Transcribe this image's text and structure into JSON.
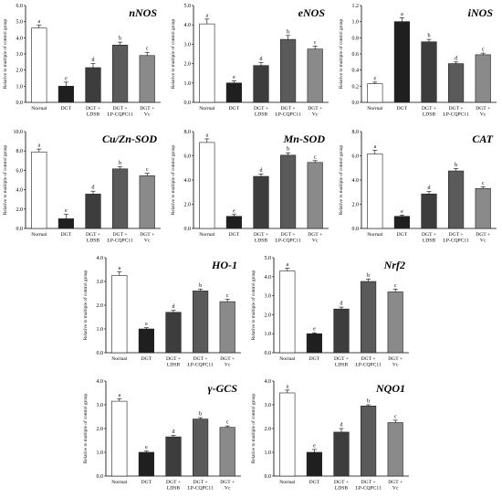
{
  "y_axis_label": "Relative to multiple of control group",
  "categories": [
    [
      "Normal"
    ],
    [
      "DGT"
    ],
    [
      "DGT +",
      "LDSB"
    ],
    [
      "DGT +",
      "LP-CQPC11"
    ],
    [
      "DGT +",
      "Vc"
    ]
  ],
  "bar_colors": [
    "#ffffff",
    "#1f1f1f",
    "#3d3d3d",
    "#5a5a5a",
    "#8a8a8a"
  ],
  "chart_data": [
    {
      "type": "bar",
      "title": "nNOS",
      "ylim": [
        0,
        6
      ],
      "yticks": [
        "0.0",
        "1.0",
        "2.0",
        "3.0",
        "4.0",
        "5.0",
        "6.0"
      ],
      "values": [
        4.6,
        1.0,
        2.15,
        3.55,
        2.9
      ],
      "errors": [
        0.18,
        0.25,
        0.25,
        0.18,
        0.2
      ],
      "letters": [
        "a",
        "e",
        "d",
        "b",
        "c"
      ]
    },
    {
      "type": "bar",
      "title": "eNOS",
      "ylim": [
        0,
        5
      ],
      "yticks": [
        "0.0",
        "1.0",
        "2.0",
        "3.0",
        "4.0",
        "5.0"
      ],
      "values": [
        4.05,
        1.0,
        1.9,
        3.25,
        2.75
      ],
      "errors": [
        0.25,
        0.1,
        0.15,
        0.2,
        0.15
      ],
      "letters": [
        "a",
        "e",
        "d",
        "b",
        "c"
      ]
    },
    {
      "type": "bar",
      "title": "iNOS",
      "ylim": [
        0,
        1.2
      ],
      "yticks": [
        "0.0",
        "0.2",
        "0.4",
        "0.6",
        "0.8",
        "1.0",
        "1.2"
      ],
      "values": [
        0.23,
        1.0,
        0.75,
        0.48,
        0.59
      ],
      "errors": [
        0.02,
        0.05,
        0.03,
        0.02,
        0.02
      ],
      "letters": [
        "e",
        "a",
        "b",
        "d",
        "c"
      ]
    },
    {
      "type": "bar",
      "title": "Cu/Zn-SOD",
      "ylim": [
        0,
        10
      ],
      "yticks": [
        "0.0",
        "2.0",
        "4.0",
        "6.0",
        "8.0",
        "10.0"
      ],
      "values": [
        7.9,
        1.0,
        3.55,
        6.15,
        5.45
      ],
      "errors": [
        0.3,
        0.45,
        0.3,
        0.2,
        0.25
      ],
      "letters": [
        "a",
        "e",
        "d",
        "b",
        "c"
      ]
    },
    {
      "type": "bar",
      "title": "Mn-SOD",
      "ylim": [
        0,
        8
      ],
      "yticks": [
        "0.0",
        "2.0",
        "4.0",
        "6.0",
        "8.0"
      ],
      "values": [
        7.1,
        1.0,
        4.3,
        6.05,
        5.45
      ],
      "errors": [
        0.3,
        0.15,
        0.2,
        0.2,
        0.15
      ],
      "letters": [
        "a",
        "e",
        "d",
        "b",
        "c"
      ]
    },
    {
      "type": "bar",
      "title": "CAT",
      "ylim": [
        0,
        8
      ],
      "yticks": [
        "0.0",
        "2.0",
        "4.0",
        "6.0",
        "8.0"
      ],
      "values": [
        6.15,
        1.0,
        2.85,
        4.75,
        3.3
      ],
      "errors": [
        0.3,
        0.1,
        0.2,
        0.2,
        0.15
      ],
      "letters": [
        "a",
        "e",
        "d",
        "b",
        "c"
      ]
    },
    {
      "type": "bar",
      "title": "HO-1",
      "ylim": [
        0,
        4
      ],
      "yticks": [
        "0.0",
        "1.0",
        "2.0",
        "3.0",
        "4.0"
      ],
      "values": [
        3.25,
        1.0,
        1.7,
        2.6,
        2.15
      ],
      "errors": [
        0.15,
        0.05,
        0.08,
        0.08,
        0.1
      ],
      "letters": [
        "a",
        "e",
        "d",
        "b",
        "c"
      ]
    },
    {
      "type": "bar",
      "title": "Nrf2",
      "ylim": [
        0,
        5
      ],
      "yticks": [
        "0.0",
        "1.0",
        "2.0",
        "3.0",
        "4.0",
        "5.0"
      ],
      "values": [
        4.3,
        1.0,
        2.3,
        3.75,
        3.2
      ],
      "errors": [
        0.15,
        0.05,
        0.1,
        0.12,
        0.15
      ],
      "letters": [
        "a",
        "e",
        "d",
        "b",
        "c"
      ]
    },
    {
      "type": "bar",
      "title": "γ-GCS",
      "ylim": [
        0,
        4
      ],
      "yticks": [
        "0.0",
        "1.0",
        "2.0",
        "3.0",
        "4.0"
      ],
      "values": [
        3.15,
        1.0,
        1.65,
        2.4,
        2.05
      ],
      "errors": [
        0.1,
        0.05,
        0.06,
        0.06,
        0.06
      ],
      "letters": [
        "a",
        "e",
        "d",
        "b",
        "c"
      ]
    },
    {
      "type": "bar",
      "title": "NQO1",
      "ylim": [
        0,
        4
      ],
      "yticks": [
        "0.0",
        "1.0",
        "2.0",
        "3.0",
        "4.0"
      ],
      "values": [
        3.5,
        1.0,
        1.85,
        2.95,
        2.25
      ],
      "errors": [
        0.12,
        0.12,
        0.15,
        0.05,
        0.1
      ],
      "letters": [
        "a",
        "e",
        "d",
        "b",
        "c"
      ]
    }
  ]
}
